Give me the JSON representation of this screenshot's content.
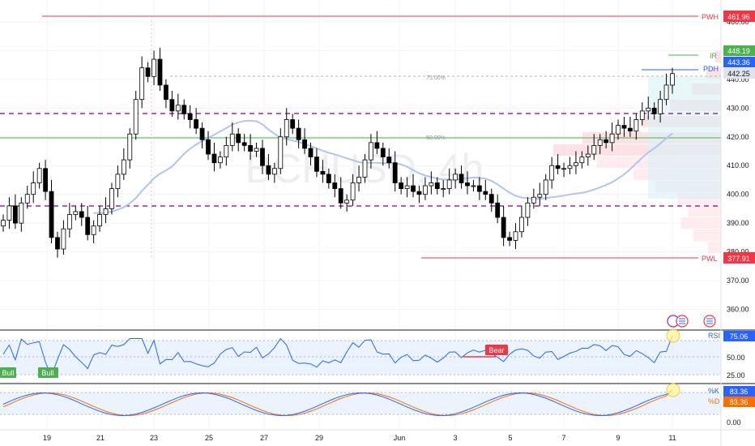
{
  "watermark": "BCHUSD, 4h",
  "price_axis": {
    "ticks": [
      "460.00",
      "450.00",
      "440.00",
      "430.00",
      "420.00",
      "410.00",
      "400.00",
      "390.00",
      "380.00",
      "370.00",
      "360.00"
    ]
  },
  "time_axis": {
    "labels": [
      "19",
      "21",
      "23",
      "25",
      "27",
      "29",
      "Jun",
      "3",
      "5",
      "7",
      "9",
      "11"
    ]
  },
  "levels": {
    "pwh": {
      "label": "PWH",
      "value": "461.96",
      "color": "#f23645"
    },
    "ir": {
      "label": "IR",
      "value": "448.19",
      "color": "#4caf50"
    },
    "pdh": {
      "label": "PDH",
      "value": "443.36",
      "color": "#2962ff"
    },
    "last": {
      "value": "442.25"
    },
    "pwl": {
      "label": "PWL",
      "value": "377.91",
      "color": "#f23645"
    },
    "fib75": "75.00%",
    "fib50": "50.00%"
  },
  "rsi": {
    "label": "RSI",
    "value": "75.06",
    "ticks": [
      "50.00",
      "25.00"
    ],
    "bull_labels": [
      "Bull",
      "Bull"
    ],
    "bear_label": "Bear"
  },
  "stoch": {
    "k_label": "%K",
    "k_value": "83.36",
    "d_label": "%D",
    "d_value": "83.36",
    "ticks": [
      "0.00"
    ]
  },
  "colors": {
    "up": "#ffffff",
    "down": "#000000",
    "ma": "#b2c4ef",
    "rsi_line": "#2962ff",
    "stoch_k": "#2962ff",
    "stoch_d": "#ff6d00",
    "dashed_purple": "#9c27b0"
  },
  "chart_data": {
    "type": "candlestick",
    "ylim": [
      355,
      468
    ],
    "series_close": [
      391,
      396,
      390,
      397,
      400,
      404,
      409,
      401,
      385,
      381,
      388,
      393,
      394,
      392,
      386,
      389,
      393,
      395,
      402,
      407,
      412,
      421,
      433,
      444,
      441,
      447,
      438,
      433,
      429,
      431,
      428,
      426,
      423,
      419,
      414,
      411,
      413,
      417,
      421,
      418,
      417,
      415,
      416,
      410,
      407,
      409,
      420,
      426,
      423,
      419,
      416,
      413,
      408,
      407,
      404,
      402,
      397,
      398,
      404,
      406,
      412,
      418,
      416,
      413,
      411,
      404,
      402,
      403,
      401,
      400,
      403,
      404,
      402,
      402,
      405,
      407,
      404,
      403,
      403,
      401,
      400,
      397,
      392,
      385,
      384,
      387,
      392,
      397,
      399,
      400,
      405,
      410,
      409,
      409,
      410,
      411,
      413,
      414,
      417,
      419,
      418,
      421,
      424,
      423,
      422,
      426,
      429,
      430,
      428,
      433,
      438,
      442
    ],
    "x_labels": [
      "19",
      "21",
      "23",
      "25",
      "27",
      "29",
      "Jun",
      "3",
      "5",
      "7",
      "9",
      "11"
    ],
    "rsi_value": 75.06,
    "stoch_k": 83.36,
    "stoch_d": 83.36
  }
}
